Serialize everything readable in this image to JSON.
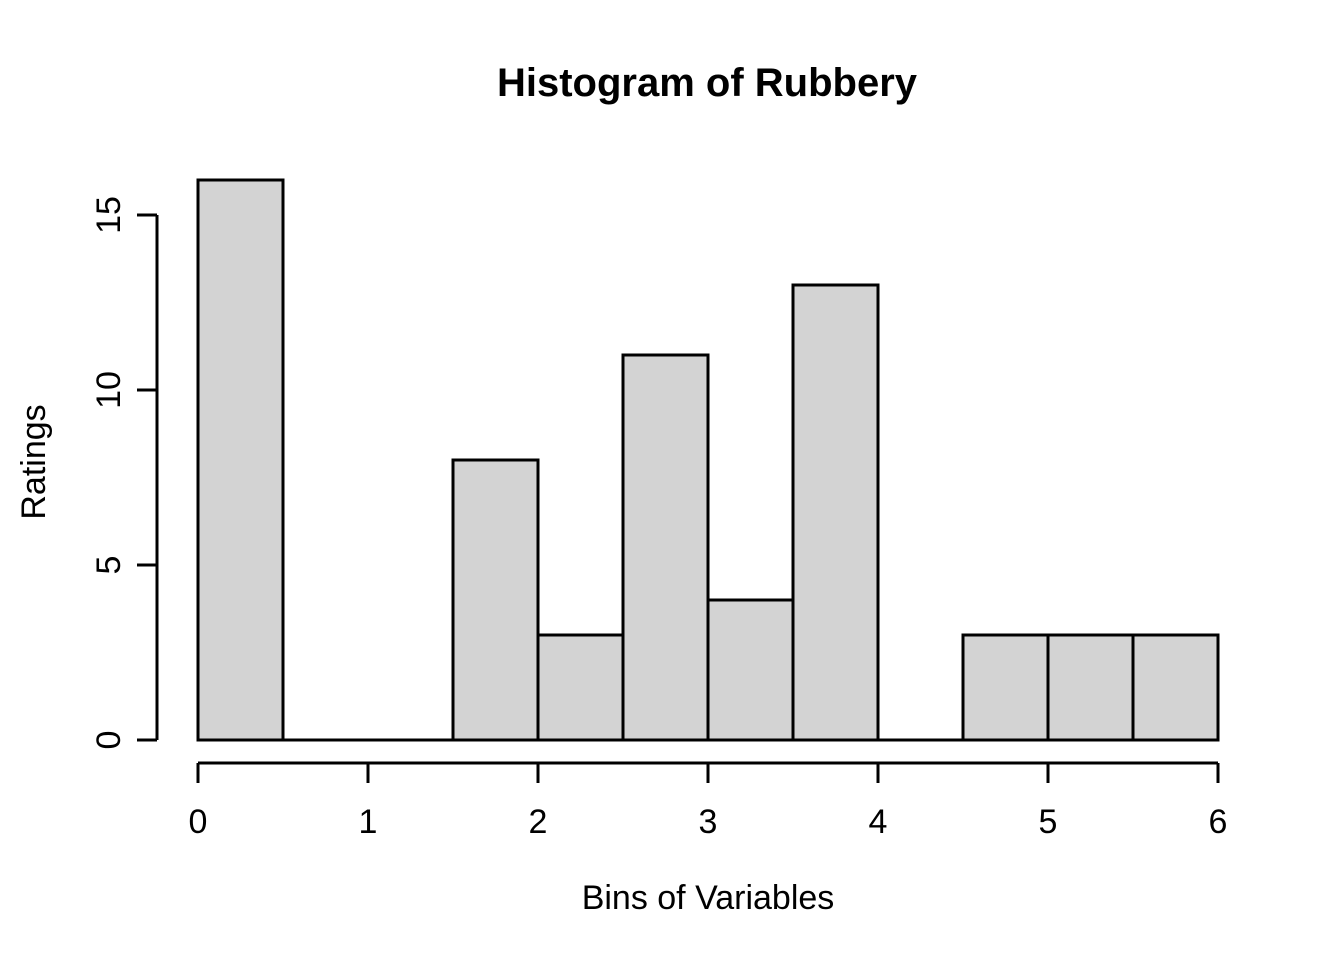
{
  "figure": {
    "title": "Histogram of Rubbery",
    "xlabel": "Bins of Variables",
    "ylabel": "Ratings"
  },
  "colors": {
    "bar_fill": "#d3d3d3",
    "bar_border": "#000000",
    "axis": "#000000",
    "text": "#000000",
    "background": "#ffffff"
  },
  "chart_data": {
    "type": "bar",
    "subtype": "histogram",
    "title": "Histogram of Rubbery",
    "xlabel": "Bins of Variables",
    "ylabel": "Ratings",
    "bin_width": 0.5,
    "bins": [
      {
        "x0": 0.0,
        "x1": 0.5,
        "count": 16
      },
      {
        "x0": 0.5,
        "x1": 1.0,
        "count": 0
      },
      {
        "x0": 1.0,
        "x1": 1.5,
        "count": 0
      },
      {
        "x0": 1.5,
        "x1": 2.0,
        "count": 8
      },
      {
        "x0": 2.0,
        "x1": 2.5,
        "count": 3
      },
      {
        "x0": 2.5,
        "x1": 3.0,
        "count": 11
      },
      {
        "x0": 3.0,
        "x1": 3.5,
        "count": 4
      },
      {
        "x0": 3.5,
        "x1": 4.0,
        "count": 13
      },
      {
        "x0": 4.0,
        "x1": 4.5,
        "count": 0
      },
      {
        "x0": 4.5,
        "x1": 5.0,
        "count": 3
      },
      {
        "x0": 5.0,
        "x1": 5.5,
        "count": 3
      },
      {
        "x0": 5.5,
        "x1": 6.0,
        "count": 3
      }
    ],
    "x_ticks": [
      0,
      1,
      2,
      3,
      4,
      5,
      6
    ],
    "y_ticks": [
      0,
      5,
      10,
      15
    ],
    "xlim": [
      0,
      6
    ],
    "ylim": [
      0,
      16
    ],
    "grid": false,
    "legend": "none"
  }
}
